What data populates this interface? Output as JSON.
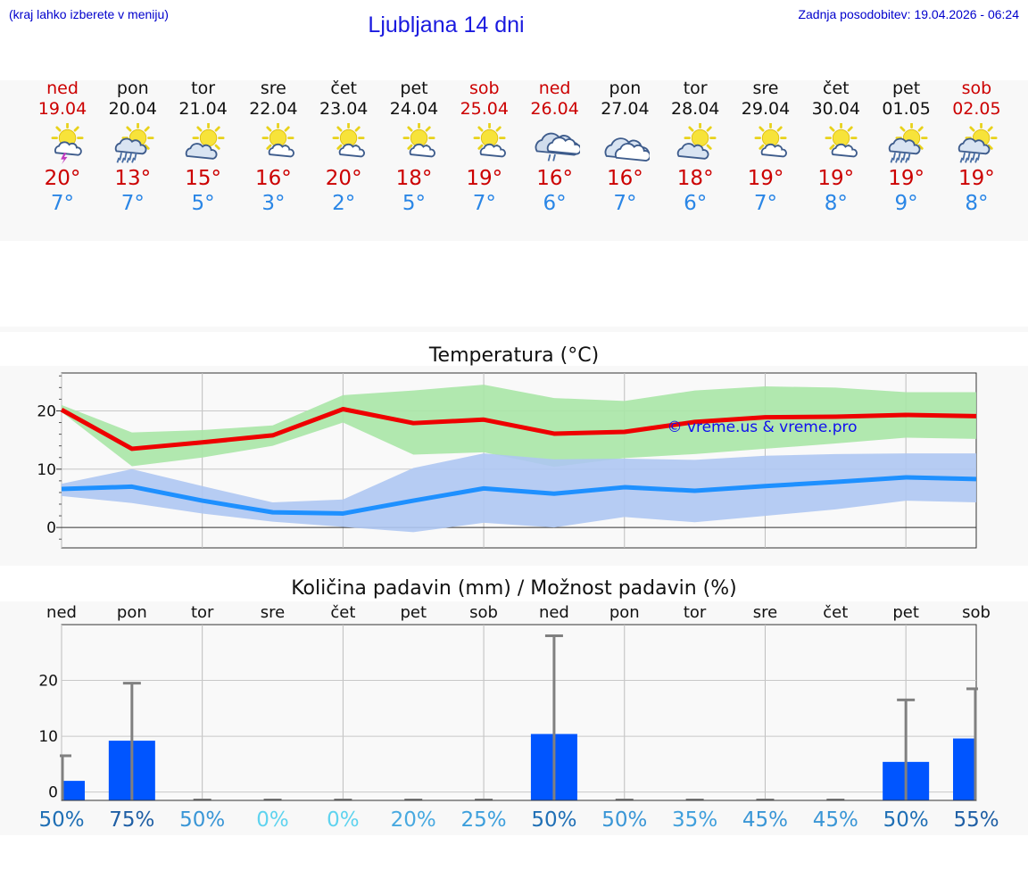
{
  "header": {
    "hint": "(kraj lahko izberete v meniju)",
    "title": "Ljubljana 14 dni",
    "updated": "Zadnja posodobitev: 19.04.2026 - 06:24"
  },
  "days": [
    {
      "name": "ned",
      "date": "19.04",
      "icon": "sun-cloud-thunder-icon",
      "max": "20°",
      "min": "7°",
      "weekend": true
    },
    {
      "name": "pon",
      "date": "20.04",
      "icon": "sun-cloud-rain-icon",
      "max": "13°",
      "min": "7°",
      "weekend": false
    },
    {
      "name": "tor",
      "date": "21.04",
      "icon": "sun-cloud-icon",
      "max": "15°",
      "min": "5°",
      "weekend": false
    },
    {
      "name": "sre",
      "date": "22.04",
      "icon": "sun-small-cloud-icon",
      "max": "16°",
      "min": "3°",
      "weekend": false
    },
    {
      "name": "čet",
      "date": "23.04",
      "icon": "sun-small-cloud-icon",
      "max": "20°",
      "min": "2°",
      "weekend": false
    },
    {
      "name": "pet",
      "date": "24.04",
      "icon": "sun-small-cloud-icon",
      "max": "18°",
      "min": "5°",
      "weekend": false
    },
    {
      "name": "sob",
      "date": "25.04",
      "icon": "sun-small-cloud-icon",
      "max": "19°",
      "min": "7°",
      "weekend": true
    },
    {
      "name": "ned",
      "date": "26.04",
      "icon": "cloud-rain-icon",
      "max": "16°",
      "min": "6°",
      "weekend": true
    },
    {
      "name": "pon",
      "date": "27.04",
      "icon": "cloudy-icon",
      "max": "16°",
      "min": "7°",
      "weekend": false
    },
    {
      "name": "tor",
      "date": "28.04",
      "icon": "sun-cloud-icon",
      "max": "18°",
      "min": "6°",
      "weekend": false
    },
    {
      "name": "sre",
      "date": "29.04",
      "icon": "sun-small-cloud-icon",
      "max": "19°",
      "min": "7°",
      "weekend": false
    },
    {
      "name": "čet",
      "date": "30.04",
      "icon": "sun-small-cloud-icon",
      "max": "19°",
      "min": "8°",
      "weekend": false
    },
    {
      "name": "pet",
      "date": "01.05",
      "icon": "sun-cloud-rain-icon",
      "max": "19°",
      "min": "9°",
      "weekend": false
    },
    {
      "name": "sob",
      "date": "02.05",
      "icon": "sun-cloud-rain-icon",
      "max": "19°",
      "min": "8°",
      "weekend": true
    }
  ],
  "colors": {
    "max_line": "#ee0000",
    "max_band": "#a8e6a6",
    "min_line": "#1e90ff",
    "min_band": "#aec6f2",
    "rain_bar": "#0055ff",
    "error_bar": "#808080",
    "watermark": "#1010ee"
  },
  "chart_data": [
    {
      "type": "line",
      "title": "Temperatura (°C)",
      "watermark": "© vreme.us & vreme.pro",
      "x": [
        "19.04",
        "20.04",
        "21.04",
        "22.04",
        "23.04",
        "24.04",
        "25.04",
        "26.04",
        "27.04",
        "28.04",
        "29.04",
        "30.04",
        "01.05",
        "02.05"
      ],
      "ylim": [
        -3.5,
        26.5
      ],
      "yticks": [
        0,
        10,
        20
      ],
      "grid": true,
      "series": [
        {
          "key": "max",
          "values": [
            20.2,
            13.5,
            14.6,
            15.8,
            20.3,
            17.9,
            18.5,
            16.1,
            16.4,
            18.1,
            18.9,
            19.0,
            19.3,
            19.1
          ]
        },
        {
          "key": "max_band_high",
          "values": [
            21.0,
            16.3,
            16.7,
            17.5,
            22.7,
            23.5,
            24.5,
            22.2,
            21.7,
            23.5,
            24.2,
            24.0,
            23.2,
            23.2
          ]
        },
        {
          "key": "max_band_low",
          "values": [
            19.8,
            10.5,
            12.0,
            14.0,
            18.0,
            12.5,
            12.9,
            10.4,
            11.9,
            12.6,
            13.5,
            14.4,
            15.4,
            15.2
          ]
        },
        {
          "key": "min",
          "values": [
            6.6,
            7.0,
            4.6,
            2.6,
            2.4,
            4.6,
            6.7,
            5.8,
            6.9,
            6.3,
            7.1,
            7.8,
            8.6,
            8.3
          ]
        },
        {
          "key": "min_band_high",
          "values": [
            7.5,
            10.0,
            7.1,
            4.3,
            4.8,
            10.2,
            12.7,
            11.7,
            11.8,
            11.6,
            12.3,
            12.6,
            12.7,
            12.7
          ]
        },
        {
          "key": "min_band_low",
          "values": [
            5.4,
            4.2,
            2.4,
            1.0,
            0.1,
            -0.8,
            0.8,
            0.0,
            1.8,
            0.9,
            2.0,
            3.1,
            4.6,
            4.3
          ]
        }
      ]
    },
    {
      "type": "bar",
      "title": "Količina padavin (mm) / Možnost padavin (%)",
      "categories": [
        "ned",
        "pon",
        "tor",
        "sre",
        "čet",
        "pet",
        "sob",
        "ned",
        "pon",
        "tor",
        "sre",
        "čet",
        "pet",
        "sob"
      ],
      "ylim": [
        -1.5,
        30
      ],
      "yticks": [
        0,
        10,
        20
      ],
      "grid": true,
      "values": [
        2.0,
        9.2,
        0,
        0,
        0,
        0,
        0,
        10.4,
        0,
        0,
        0,
        0,
        5.4,
        9.6
      ],
      "error_high": [
        6.5,
        19.5,
        0,
        0,
        0,
        0,
        0,
        28.0,
        0,
        0,
        0,
        0,
        16.5,
        18.5
      ],
      "probability": [
        "50%",
        "75%",
        "50%",
        "0%",
        "0%",
        "20%",
        "25%",
        "50%",
        "50%",
        "35%",
        "45%",
        "45%",
        "50%",
        "55%"
      ],
      "probability_colors": [
        "#1f6fb5",
        "#1f5fa5",
        "#3a96d6",
        "#5fd3ef",
        "#5fd3ef",
        "#48a9e0",
        "#3d9fdc",
        "#1f6fb5",
        "#3a96d6",
        "#3f9fdc",
        "#3a96d6",
        "#3a96d6",
        "#1f6fb5",
        "#1f5fa5"
      ]
    }
  ]
}
